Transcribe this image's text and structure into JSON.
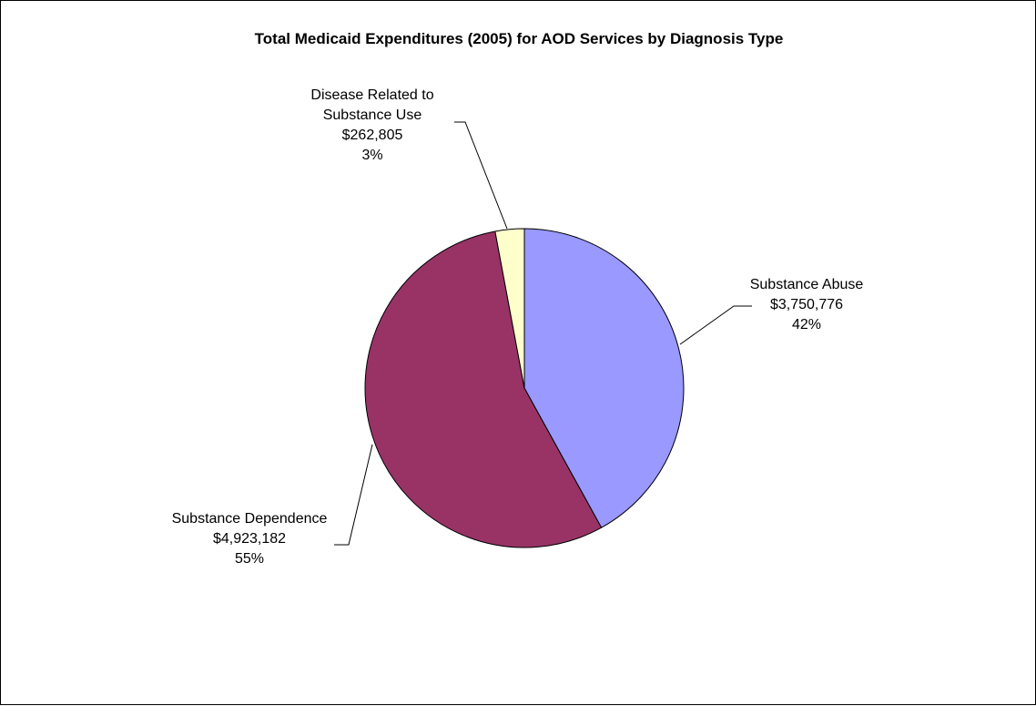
{
  "chart_data": {
    "type": "pie",
    "title": "Total Medicaid Expenditures (2005) for AOD Services by Diagnosis Type",
    "slices": [
      {
        "label_lines": [
          "Substance Abuse"
        ],
        "value": 3750776,
        "value_text": "$3,750,776",
        "percent_text": "42%",
        "color": "#9999FF"
      },
      {
        "label_lines": [
          "Substance Dependence"
        ],
        "value": 4923182,
        "value_text": "$4,923,182",
        "percent_text": "55%",
        "color": "#993366"
      },
      {
        "label_lines": [
          "Disease Related to",
          "Substance Use"
        ],
        "value": 262805,
        "value_text": "$262,805",
        "percent_text": "3%",
        "color": "#FFFFCC"
      }
    ],
    "start_angle": "12 o'clock",
    "direction": "clockwise",
    "legend": "none"
  }
}
